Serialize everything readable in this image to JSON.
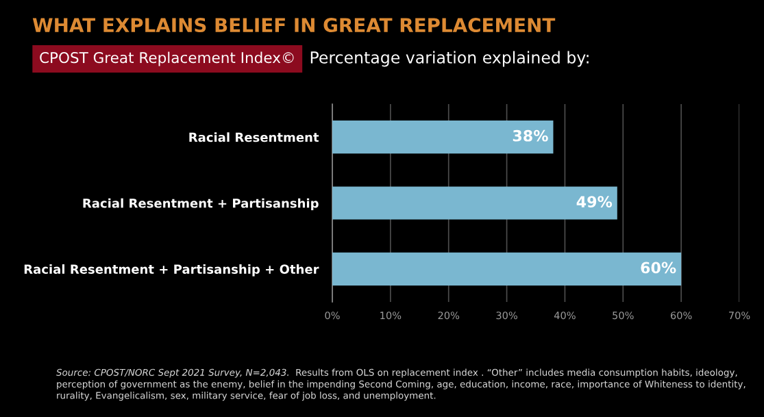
{
  "chart_data": {
    "type": "bar",
    "orientation": "horizontal",
    "title": "WHAT EXPLAINS BELIEF IN GREAT REPLACEMENT",
    "subtitle": "CPOST Great Replacement Index©",
    "categories": [
      "Racial Resentment",
      "Racial Resentment + Partisanship",
      "Racial Resentment + Partisanship + Other"
    ],
    "values": [
      38,
      49,
      60
    ],
    "color": "#7ab7d0",
    "value_labels": [
      "38%",
      "49%",
      "60%"
    ],
    "xlim": [
      0,
      70
    ],
    "xticks": [
      {
        "value": 0,
        "label": "0%"
      },
      {
        "value": 10,
        "label": "10%"
      },
      {
        "value": 20,
        "label": "20%"
      },
      {
        "value": 30,
        "label": "30%"
      },
      {
        "value": 40,
        "label": "40%"
      },
      {
        "value": 50,
        "label": "50%"
      },
      {
        "value": 60,
        "label": "60%"
      },
      {
        "value": 70,
        "label": "70%"
      }
    ],
    "grid": "x",
    "annotations": [
      "Percentage variation explained by:",
      "Source: CPOST/NORC Sept 2021 Survey, N=2,043.",
      "Results from OLS on replacement index . “Other” includes media consumption habits, ideology,",
      "perception of government as the enemy, belief in the impending Second Coming, age, education, income, race, importance of Whiteness to identity,\nrurality, Evangelicalism, sex, military service, fear of job loss, and unemployment."
    ]
  }
}
